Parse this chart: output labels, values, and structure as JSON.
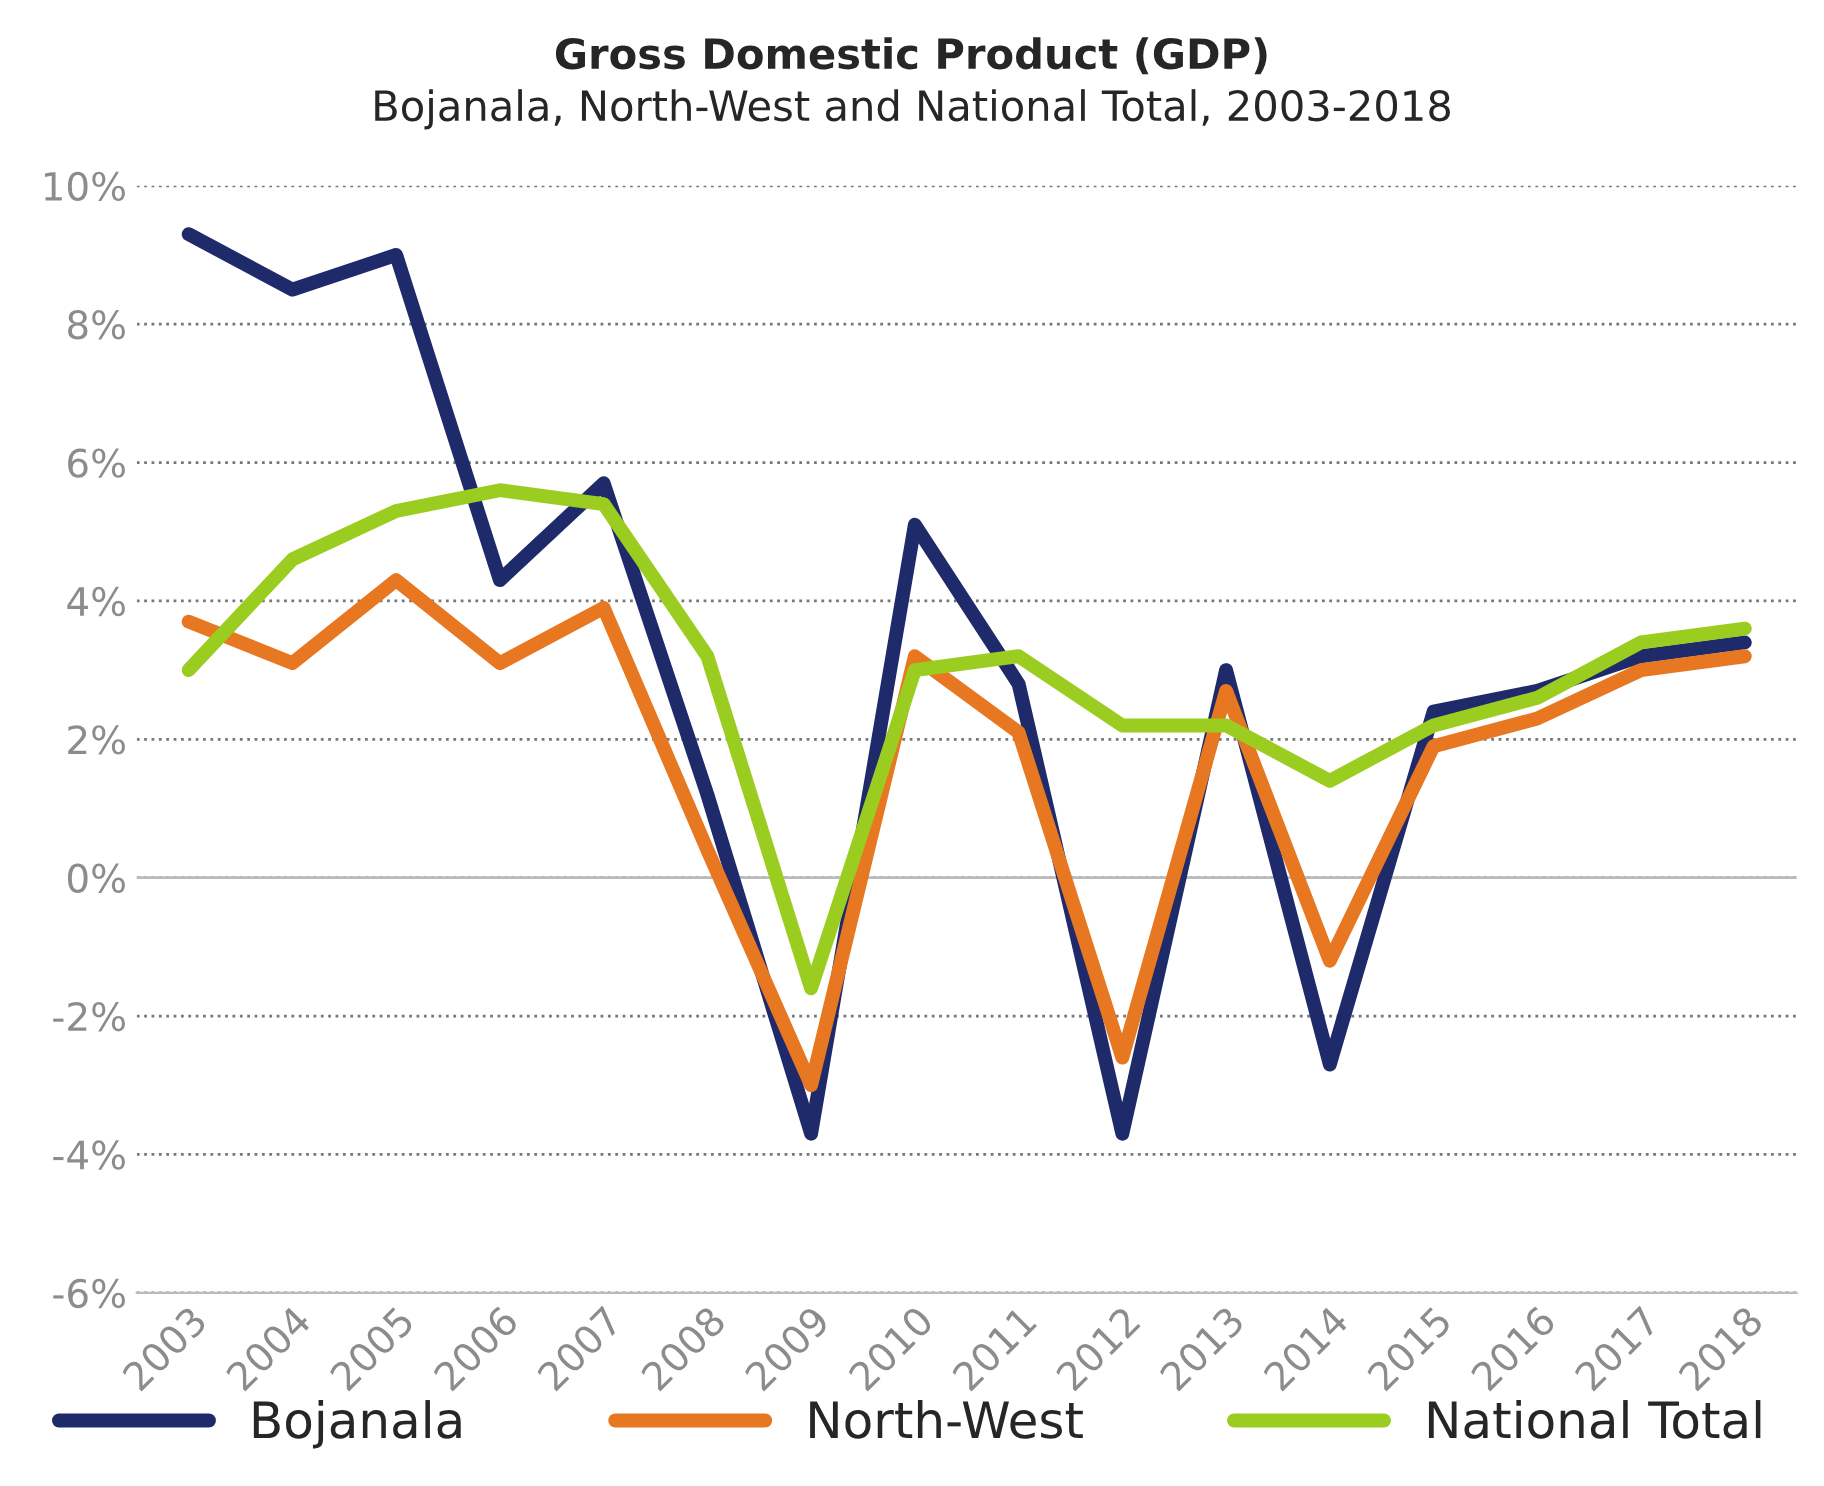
{
  "chart_data": {
    "type": "line",
    "title": "Gross Domestic Product (GDP)",
    "subtitle": "Bojanala, North-West and National Total, 2003-2018",
    "categories": [
      "2003",
      "2004",
      "2005",
      "2006",
      "2007",
      "2008",
      "2009",
      "2010",
      "2011",
      "2012",
      "2013",
      "2014",
      "2015",
      "2016",
      "2017",
      "2018"
    ],
    "series": [
      {
        "name": "Bojanala",
        "color": "#1f2a6b",
        "values": [
          9.3,
          8.5,
          9.0,
          4.3,
          5.7,
          1.2,
          -3.7,
          5.1,
          2.8,
          -3.7,
          3.0,
          -2.7,
          2.4,
          2.7,
          3.2,
          3.4
        ]
      },
      {
        "name": "North-West",
        "color": "#e87722",
        "values": [
          3.7,
          3.1,
          4.3,
          3.1,
          3.9,
          0.4,
          -3.0,
          3.2,
          2.1,
          -2.6,
          2.7,
          -1.2,
          1.9,
          2.3,
          3.0,
          3.2
        ]
      },
      {
        "name": "National Total",
        "color": "#9acd1f",
        "values": [
          3.0,
          4.6,
          5.3,
          5.6,
          5.4,
          3.2,
          -1.6,
          3.0,
          3.2,
          2.2,
          2.2,
          1.4,
          2.2,
          2.6,
          3.4,
          3.6
        ]
      }
    ],
    "ylim": [
      -6,
      10
    ],
    "yticks": [
      {
        "value": -6,
        "label": "-6%"
      },
      {
        "value": -4,
        "label": "-4%"
      },
      {
        "value": -2,
        "label": "-2%"
      },
      {
        "value": 0,
        "label": "0%"
      },
      {
        "value": 2,
        "label": "2%"
      },
      {
        "value": 4,
        "label": "4%"
      },
      {
        "value": 6,
        "label": "6%"
      },
      {
        "value": 8,
        "label": "8%"
      },
      {
        "value": 10,
        "label": "10%"
      }
    ],
    "grid": "y",
    "legend": "bottom",
    "marker": "none",
    "line_style": "solid"
  }
}
